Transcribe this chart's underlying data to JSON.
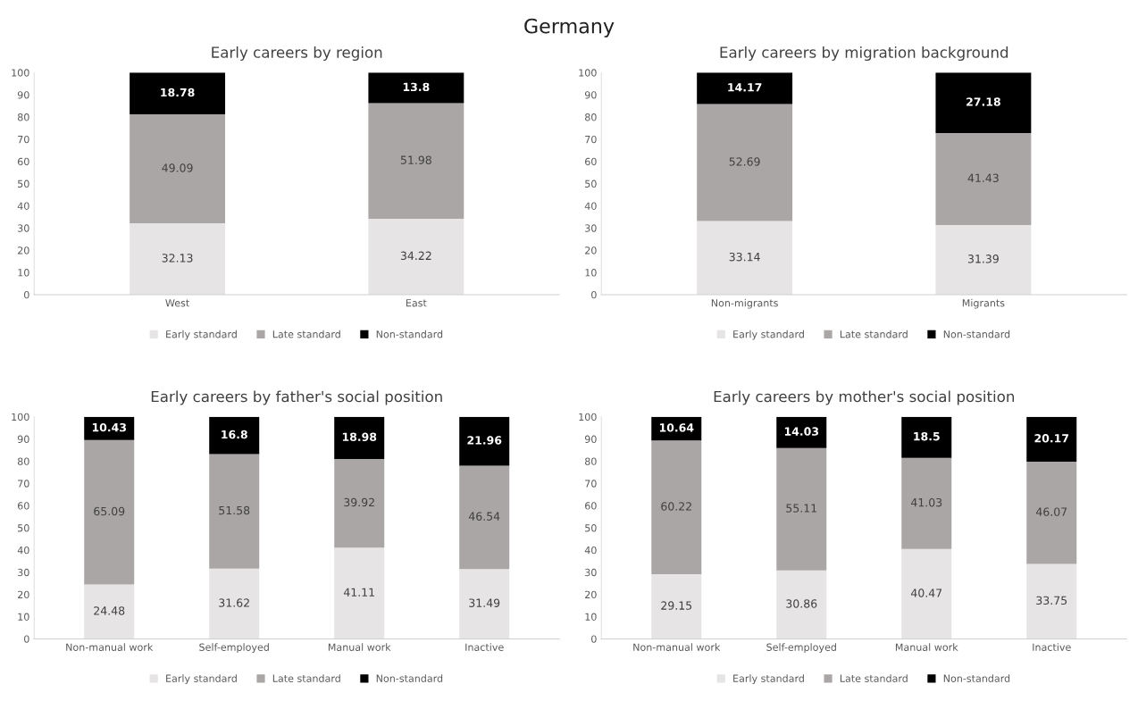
{
  "chart_data": [
    {
      "type": "bar",
      "stacked": true,
      "title": "Early careers by region",
      "annotations": [
        "Germany"
      ],
      "categories": [
        "West",
        "East"
      ],
      "series": [
        {
          "name": "Early standard",
          "color": "#e6e4e4",
          "values": [
            32.13,
            34.22
          ]
        },
        {
          "name": "Late standard",
          "color": "#aaa6a5",
          "values": [
            49.09,
            51.98
          ]
        },
        {
          "name": "Non-standard",
          "color": "#000000",
          "values": [
            18.78,
            13.8
          ]
        }
      ],
      "ylim": [
        0,
        100
      ],
      "yticks": [
        0,
        10,
        20,
        30,
        40,
        50,
        60,
        70,
        80,
        90,
        100
      ],
      "data_labels": true,
      "legend": "bottom",
      "grid": false
    },
    {
      "type": "bar",
      "stacked": true,
      "title": "Early careers by migration background",
      "categories": [
        "Non-migrants",
        "Migrants"
      ],
      "series": [
        {
          "name": "Early standard",
          "color": "#e6e4e4",
          "values": [
            33.14,
            31.39
          ]
        },
        {
          "name": "Late standard",
          "color": "#aaa6a5",
          "values": [
            52.69,
            41.43
          ]
        },
        {
          "name": "Non-standard",
          "color": "#000000",
          "values": [
            14.17,
            27.18
          ]
        }
      ],
      "ylim": [
        0,
        100
      ],
      "yticks": [
        0,
        10,
        20,
        30,
        40,
        50,
        60,
        70,
        80,
        90,
        100
      ],
      "data_labels": true,
      "legend": "bottom",
      "grid": false
    },
    {
      "type": "bar",
      "stacked": true,
      "title": "Early careers by father's social position",
      "categories": [
        "Non-manual work",
        "Self-employed",
        "Manual work",
        "Inactive"
      ],
      "series": [
        {
          "name": "Early standard",
          "color": "#e6e4e4",
          "values": [
            24.48,
            31.62,
            41.11,
            31.49
          ]
        },
        {
          "name": "Late standard",
          "color": "#aaa6a5",
          "values": [
            65.09,
            51.58,
            39.92,
            46.54
          ]
        },
        {
          "name": "Non-standard",
          "color": "#000000",
          "values": [
            10.43,
            16.8,
            18.98,
            21.96
          ]
        }
      ],
      "ylim": [
        0,
        100
      ],
      "yticks": [
        0,
        10,
        20,
        30,
        40,
        50,
        60,
        70,
        80,
        90,
        100
      ],
      "data_labels": true,
      "legend": "bottom",
      "grid": false
    },
    {
      "type": "bar",
      "stacked": true,
      "title": "Early careers by mother's social position",
      "categories": [
        "Non-manual work",
        "Self-employed",
        "Manual work",
        "Inactive"
      ],
      "series": [
        {
          "name": "Early standard",
          "color": "#e6e4e4",
          "values": [
            29.15,
            30.86,
            40.47,
            33.75
          ]
        },
        {
          "name": "Late standard",
          "color": "#aaa6a5",
          "values": [
            60.22,
            55.11,
            41.03,
            46.07
          ]
        },
        {
          "name": "Non-standard",
          "color": "#000000",
          "values": [
            10.64,
            14.03,
            18.5,
            20.17
          ]
        }
      ],
      "ylim": [
        0,
        100
      ],
      "yticks": [
        0,
        10,
        20,
        30,
        40,
        50,
        60,
        70,
        80,
        90,
        100
      ],
      "data_labels": true,
      "legend": "bottom",
      "grid": false
    }
  ]
}
